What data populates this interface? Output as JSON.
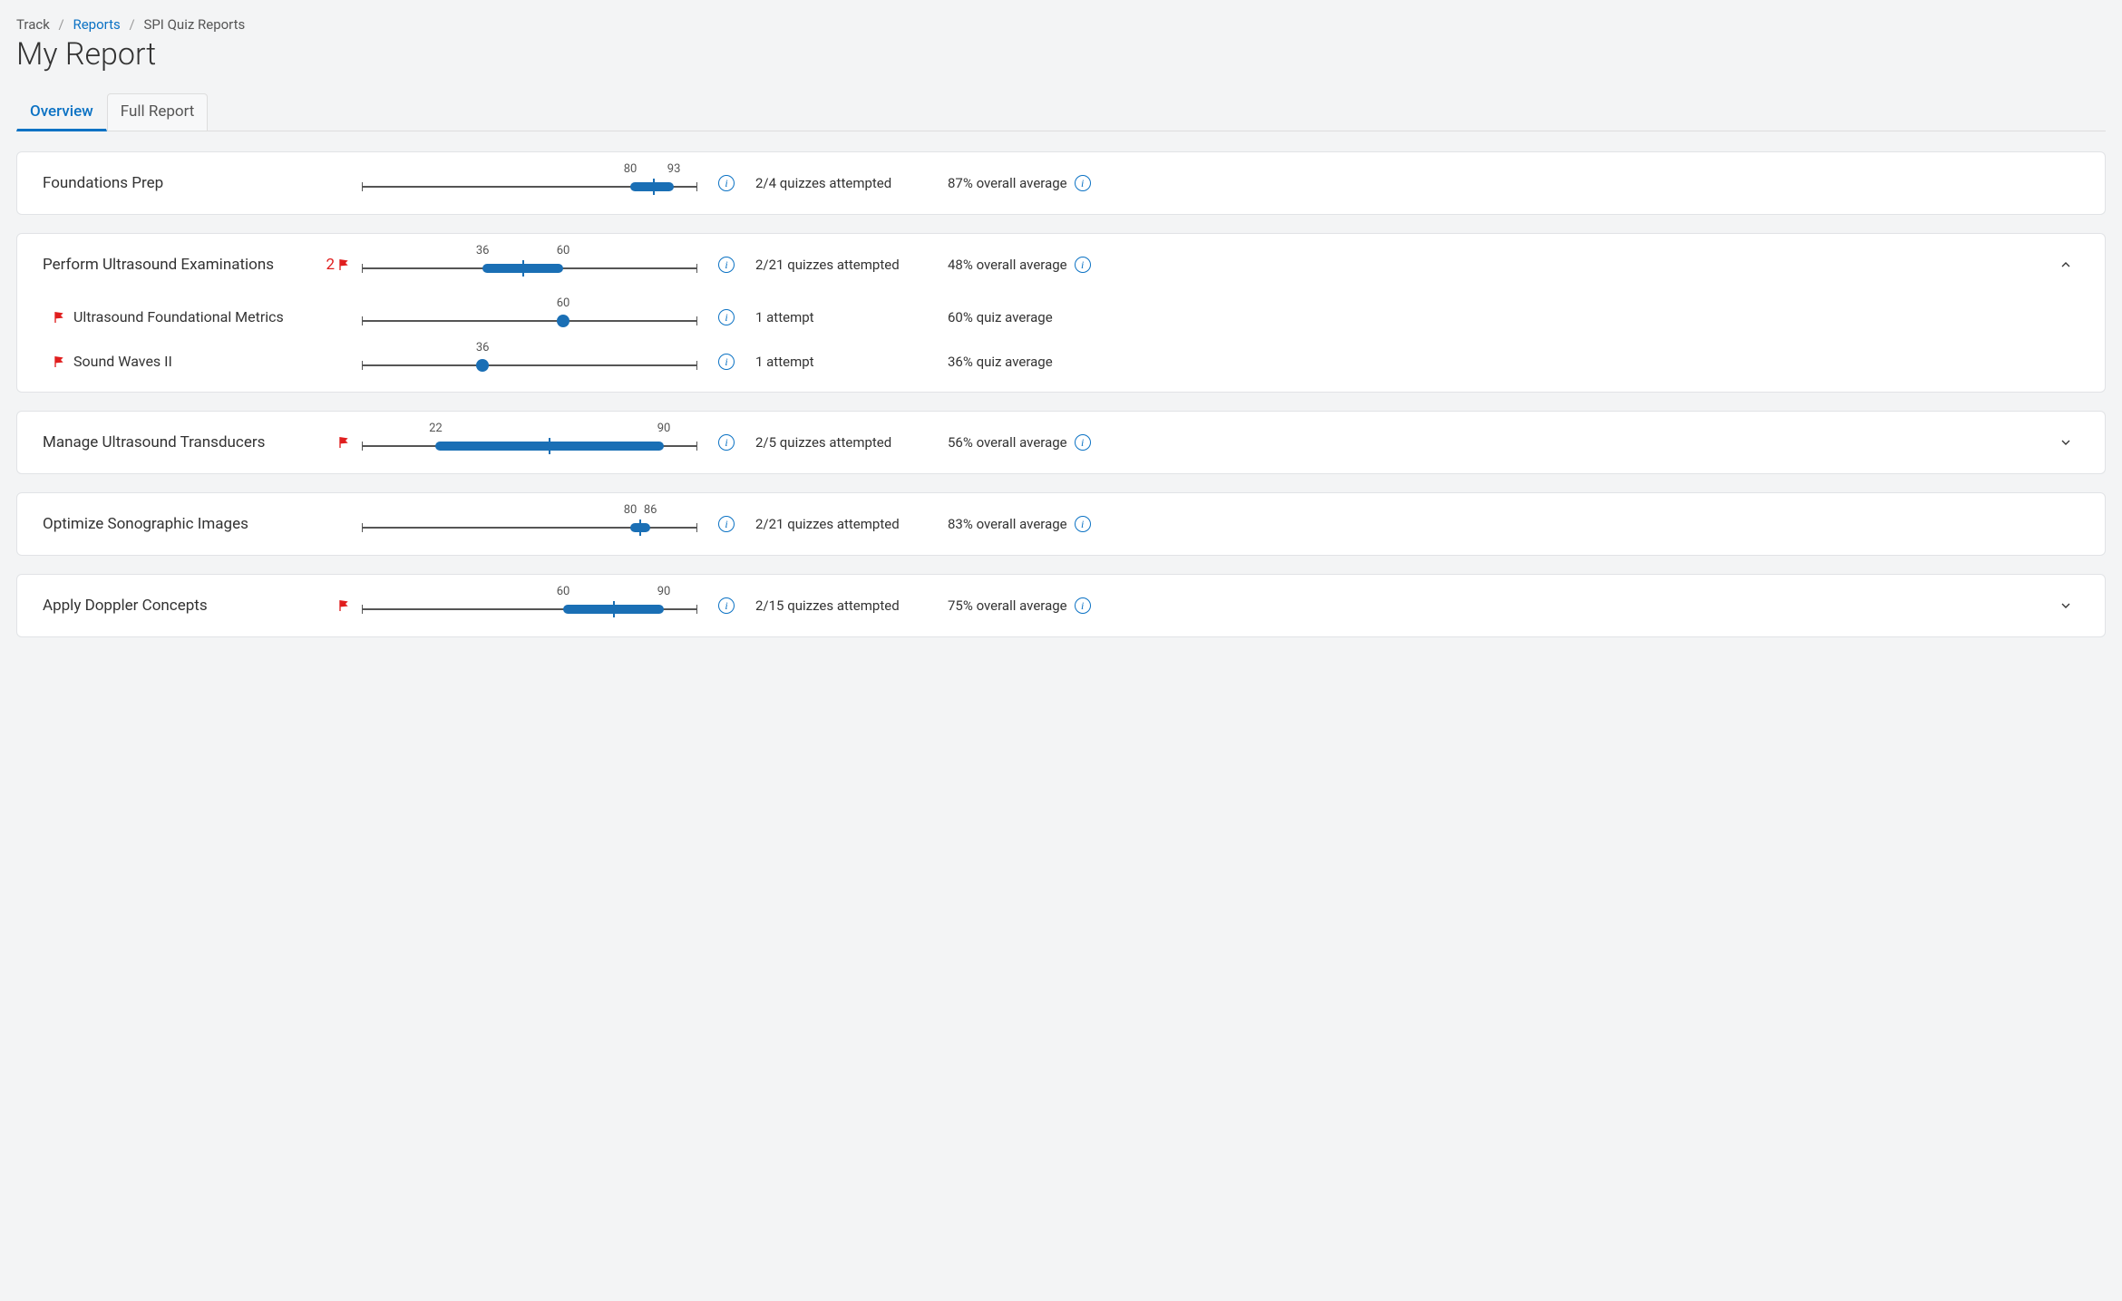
{
  "breadcrumb": {
    "root": "Track",
    "link": "Reports",
    "current": "SPI Quiz Reports"
  },
  "page_title": "My Report",
  "tabs": {
    "overview": "Overview",
    "full": "Full Report"
  },
  "colors": {
    "accent": "#0b72c4",
    "bar": "#1a6fb5",
    "flag": "#e01e1e",
    "track": "#555555",
    "bg": "#f3f4f5",
    "card_bg": "#ffffff",
    "card_border": "#e1e3e6"
  },
  "range_scale": {
    "min": 0,
    "max": 100
  },
  "sections": [
    {
      "title": "Foundations Prep",
      "flags": 0,
      "range_low": 80,
      "range_high": 93,
      "range_mid": 87,
      "low_label": "80",
      "high_label": "93",
      "attempts_text": "2/4 quizzes attempted",
      "avg_text": "87% overall average",
      "show_avg_info": true,
      "expandable": false,
      "expanded": false,
      "sub": []
    },
    {
      "title": "Perform Ultrasound Examinations",
      "flags": 2,
      "range_low": 36,
      "range_high": 60,
      "range_mid": 48,
      "low_label": "36",
      "high_label": "60",
      "attempts_text": "2/21 quizzes attempted",
      "avg_text": "48% overall average",
      "show_avg_info": true,
      "expandable": true,
      "expanded": true,
      "sub": [
        {
          "title": "Ultrasound Foundational Metrics",
          "flag": true,
          "point": 60,
          "point_label": "60",
          "attempts_text": "1 attempt",
          "avg_text": "60% quiz average"
        },
        {
          "title": "Sound Waves II",
          "flag": true,
          "point": 36,
          "point_label": "36",
          "attempts_text": "1 attempt",
          "avg_text": "36% quiz average"
        }
      ]
    },
    {
      "title": "Manage Ultrasound Transducers",
      "flags": 1,
      "range_low": 22,
      "range_high": 90,
      "range_mid": 56,
      "low_label": "22",
      "high_label": "90",
      "attempts_text": "2/5 quizzes attempted",
      "avg_text": "56% overall average",
      "show_avg_info": true,
      "expandable": true,
      "expanded": false,
      "sub": []
    },
    {
      "title": "Optimize Sonographic Images",
      "flags": 0,
      "range_low": 80,
      "range_high": 86,
      "range_mid": 83,
      "low_label": "80",
      "high_label": "86",
      "attempts_text": "2/21 quizzes attempted",
      "avg_text": "83% overall average",
      "show_avg_info": true,
      "expandable": false,
      "expanded": false,
      "sub": []
    },
    {
      "title": "Apply Doppler Concepts",
      "flags": 1,
      "range_low": 60,
      "range_high": 90,
      "range_mid": 75,
      "low_label": "60",
      "high_label": "90",
      "attempts_text": "2/15 quizzes attempted",
      "avg_text": "75% overall average",
      "show_avg_info": true,
      "expandable": true,
      "expanded": false,
      "sub": []
    }
  ]
}
